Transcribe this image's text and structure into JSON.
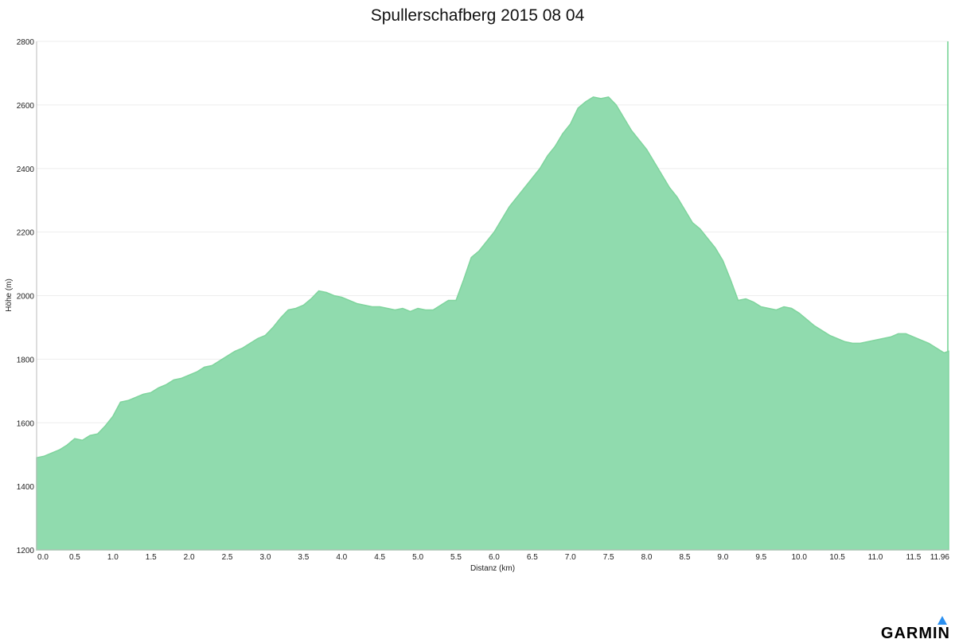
{
  "brand": {
    "logo_text": "GARMIN",
    "accent": "#2a8ff0"
  },
  "colors": {
    "fill": "#90dbae",
    "stroke": "#7fd49d",
    "grid": "#eeeeee",
    "axis": "#bbbbbb",
    "text": "#222222"
  },
  "chart_data": {
    "type": "area",
    "title": "Spullerschafberg 2015 08 04",
    "xlabel": "Distanz   (km)",
    "ylabel": "Höhe (m)",
    "xlim": [
      0.0,
      11.96
    ],
    "ylim": [
      1200,
      2800
    ],
    "x_ticks": [
      "0.0",
      "0.5",
      "1.0",
      "1.5",
      "2.0",
      "2.5",
      "3.0",
      "3.5",
      "4.0",
      "4.5",
      "5.0",
      "5.5",
      "6.0",
      "6.5",
      "7.0",
      "7.5",
      "8.0",
      "8.5",
      "9.0",
      "9.5",
      "10.0",
      "10.5",
      "11.0",
      "11.5",
      "11.96"
    ],
    "y_ticks": [
      "1200",
      "1400",
      "1600",
      "1800",
      "2000",
      "2200",
      "2400",
      "2600",
      "2800"
    ],
    "grid": true,
    "series": [
      {
        "x": [
          0.0,
          0.1,
          0.2,
          0.3,
          0.4,
          0.5,
          0.6,
          0.7,
          0.8,
          0.9,
          1.0,
          1.1,
          1.2,
          1.3,
          1.4,
          1.5,
          1.6,
          1.7,
          1.8,
          1.9,
          2.0,
          2.1,
          2.2,
          2.3,
          2.4,
          2.5,
          2.6,
          2.7,
          2.8,
          2.9,
          3.0,
          3.1,
          3.2,
          3.3,
          3.4,
          3.5,
          3.6,
          3.7,
          3.8,
          3.9,
          4.0,
          4.1,
          4.2,
          4.3,
          4.4,
          4.5,
          4.6,
          4.7,
          4.8,
          4.9,
          5.0,
          5.1,
          5.2,
          5.3,
          5.4,
          5.5,
          5.6,
          5.7,
          5.8,
          5.9,
          6.0,
          6.1,
          6.2,
          6.3,
          6.4,
          6.5,
          6.6,
          6.7,
          6.8,
          6.9,
          7.0,
          7.1,
          7.2,
          7.3,
          7.4,
          7.5,
          7.6,
          7.7,
          7.8,
          7.9,
          8.0,
          8.1,
          8.2,
          8.3,
          8.4,
          8.5,
          8.6,
          8.7,
          8.8,
          8.9,
          9.0,
          9.1,
          9.2,
          9.3,
          9.4,
          9.5,
          9.6,
          9.7,
          9.8,
          9.9,
          10.0,
          10.1,
          10.2,
          10.3,
          10.4,
          10.5,
          10.6,
          10.7,
          10.8,
          10.9,
          11.0,
          11.1,
          11.2,
          11.3,
          11.4,
          11.5,
          11.6,
          11.7,
          11.8,
          11.9,
          11.96
        ],
        "values": [
          1490,
          1495,
          1505,
          1515,
          1530,
          1550,
          1545,
          1560,
          1565,
          1590,
          1620,
          1665,
          1670,
          1680,
          1690,
          1695,
          1710,
          1720,
          1735,
          1740,
          1750,
          1760,
          1775,
          1780,
          1795,
          1810,
          1825,
          1835,
          1850,
          1865,
          1875,
          1900,
          1930,
          1955,
          1960,
          1970,
          1990,
          2015,
          2010,
          2000,
          1995,
          1985,
          1975,
          1970,
          1965,
          1965,
          1960,
          1955,
          1960,
          1950,
          1960,
          1955,
          1955,
          1970,
          1985,
          1985,
          2050,
          2120,
          2140,
          2170,
          2200,
          2240,
          2280,
          2310,
          2340,
          2370,
          2400,
          2440,
          2470,
          2510,
          2540,
          2590,
          2610,
          2625,
          2620,
          2625,
          2600,
          2560,
          2520,
          2490,
          2460,
          2420,
          2380,
          2340,
          2310,
          2270,
          2230,
          2210,
          2180,
          2150,
          2110,
          2050,
          1985,
          1990,
          1980,
          1965,
          1960,
          1955,
          1965,
          1960,
          1945,
          1925,
          1905,
          1890,
          1875,
          1865,
          1855,
          1850,
          1850,
          1855,
          1860,
          1865,
          1870,
          1880,
          1880,
          1870,
          1860,
          1850,
          1835,
          1820,
          1825
        ]
      }
    ]
  }
}
